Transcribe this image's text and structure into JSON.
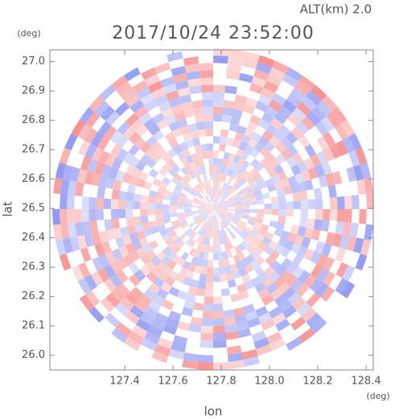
{
  "chart_data": {
    "type": "radar-image",
    "title": "2017/10/24 23:52:00",
    "subtitle": "ALT(km) 2.0",
    "x_label": "lon",
    "x_unit": "(deg)",
    "y_label": "lat",
    "y_unit": "(deg)",
    "xlim": [
      127.09,
      128.43
    ],
    "xticks": [
      127.4,
      127.6,
      127.8,
      {
        "value": 128.0,
        "label": "128.0"
      },
      128.2,
      128.4
    ],
    "ylim": [
      25.95,
      27.04
    ],
    "yticks": [
      {
        "value": 26.0,
        "label": "26.0"
      },
      26.1,
      26.2,
      26.3,
      26.4,
      26.5,
      26.6,
      26.7,
      26.8,
      26.9,
      {
        "value": 27.0,
        "label": "27.0"
      }
    ]
  }
}
